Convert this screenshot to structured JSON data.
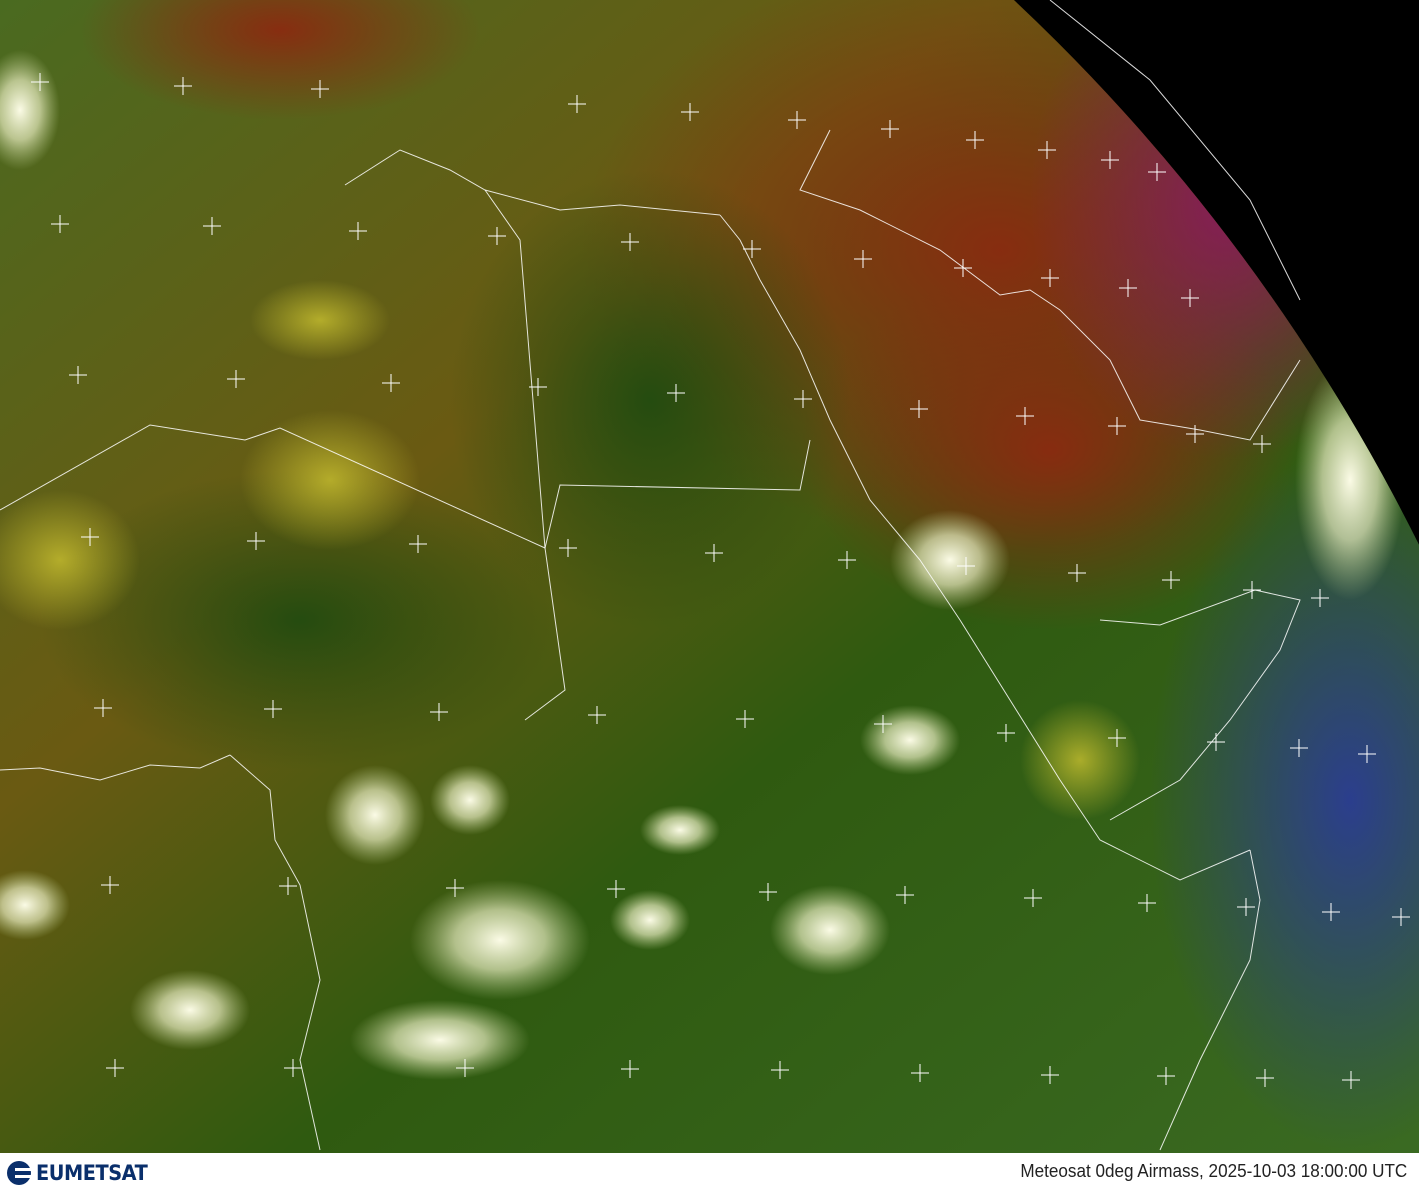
{
  "map": {
    "product": "Meteosat 0deg Airmass",
    "colors": {
      "space": "#000000",
      "green": "#2f5a12",
      "olive": "#6a6a14",
      "red": "#7a2412",
      "magenta": "#7a1a6a",
      "blue": "#2a3a8a",
      "cloud": "#f4f4d8",
      "coast": "#ffffff"
    },
    "graticule": "plus-markers",
    "borders": "white-outlines"
  },
  "footer": {
    "logo_text": "EUMETSAT",
    "caption": "Meteosat 0deg Airmass, 2025-10-03 18:00:00 UTC"
  }
}
